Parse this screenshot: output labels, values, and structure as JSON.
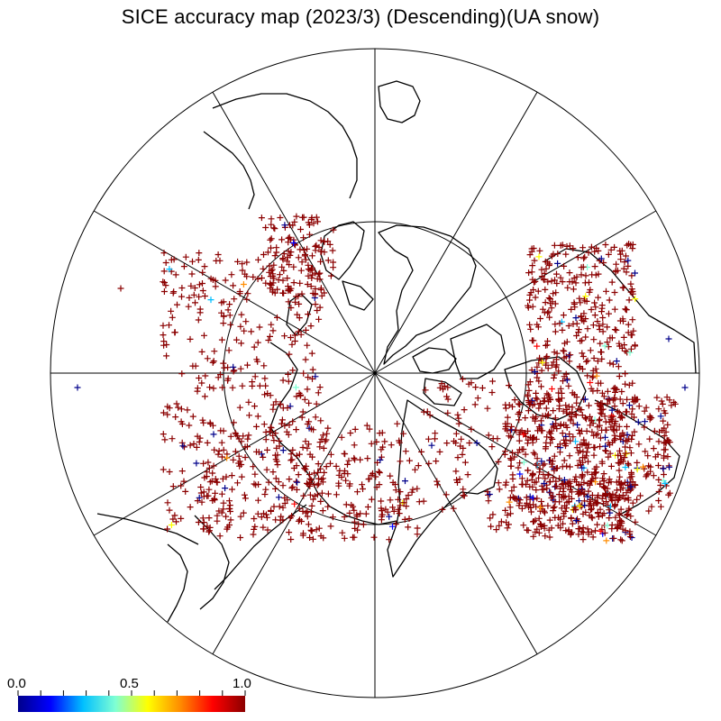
{
  "title": "SICE accuracy map (2023/3) (Descending)(UA snow)",
  "colorbar": {
    "labels": [
      "0.0",
      "0.5",
      "1.0"
    ],
    "colors": [
      "#00008b",
      "#0000ff",
      "#00bfff",
      "#7fffd4",
      "#ffff00",
      "#ff8c00",
      "#ff0000",
      "#8b0000"
    ]
  },
  "colors": {
    "marker_dominant": "#8b0000",
    "marker_low": "#00008b",
    "land_outline": "#000000",
    "graticule": "#000000"
  }
}
